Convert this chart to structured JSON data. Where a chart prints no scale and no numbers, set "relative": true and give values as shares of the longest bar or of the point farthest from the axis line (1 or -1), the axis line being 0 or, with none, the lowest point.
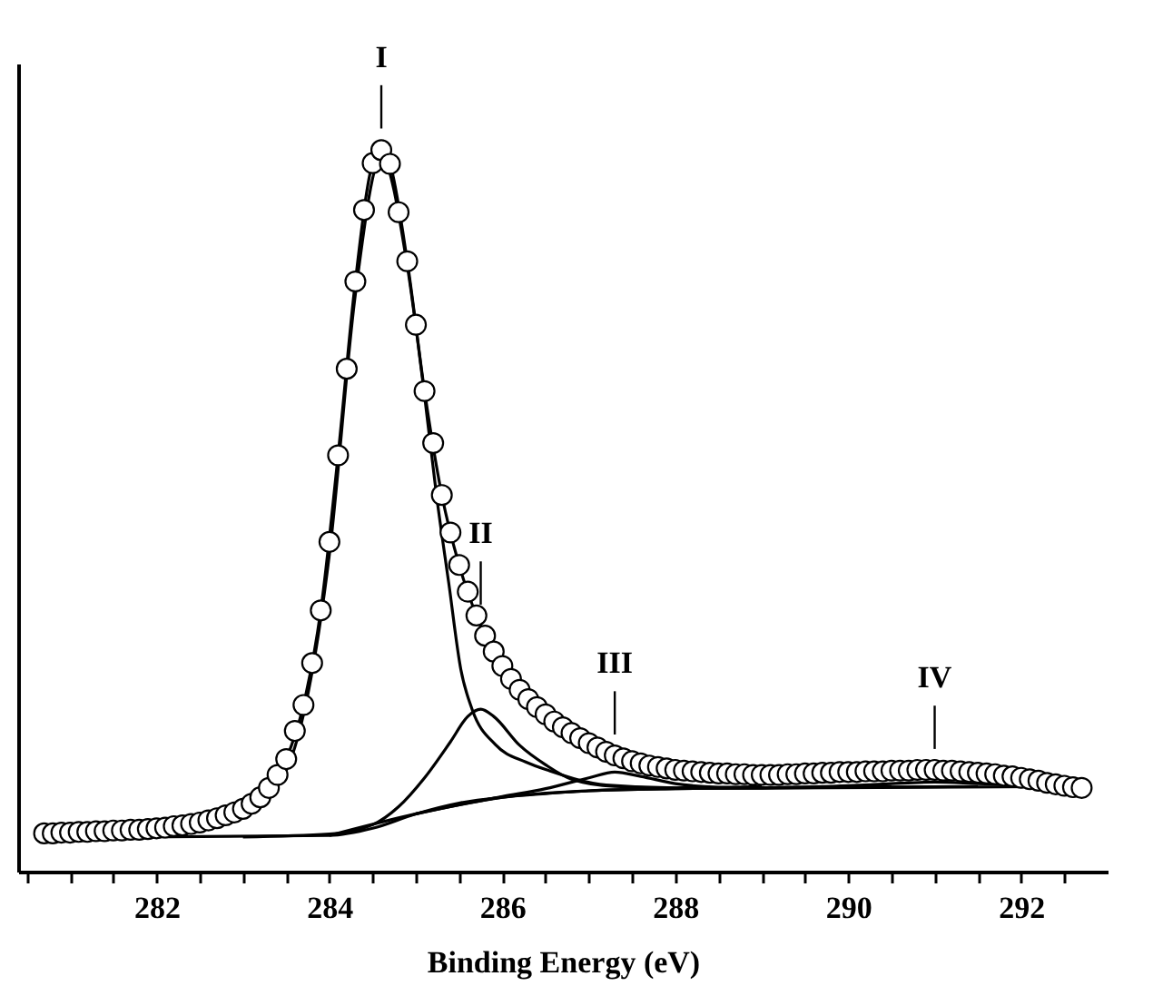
{
  "chart_data": {
    "type": "line",
    "relative": true,
    "xlabel": "Binding Energy (eV)",
    "xlim": [
      280.4,
      293.0
    ],
    "xticks": [
      {
        "value": 280.5,
        "label": null
      },
      {
        "value": 281,
        "label": null
      },
      {
        "value": 281.5,
        "label": null
      },
      282,
      {
        "value": 282.5,
        "label": null
      },
      {
        "value": 283,
        "label": null
      },
      {
        "value": 283.5,
        "label": null
      },
      284,
      {
        "value": 284.5,
        "label": null
      },
      {
        "value": 285,
        "label": null
      },
      {
        "value": 285.5,
        "label": null
      },
      286,
      {
        "value": 286.5,
        "label": null
      },
      {
        "value": 287,
        "label": null
      },
      {
        "value": 287.5,
        "label": null
      },
      288,
      {
        "value": 288.5,
        "label": null
      },
      {
        "value": 289,
        "label": null
      },
      {
        "value": 289.5,
        "label": null
      },
      290,
      {
        "value": 290.5,
        "label": null
      },
      {
        "value": 291,
        "label": null
      },
      {
        "value": 291.5,
        "label": null
      },
      292,
      {
        "value": 292.5,
        "label": null
      }
    ],
    "line_style": "solid",
    "annotations": [
      {
        "text": "I",
        "x": 284.6,
        "y": 1.0
      },
      {
        "text": "II",
        "x": 285.75,
        "y": 0.34
      },
      {
        "text": "III",
        "x": 287.3,
        "y": 0.16
      },
      {
        "text": "IV",
        "x": 291.0,
        "y": 0.14
      }
    ],
    "series": [
      {
        "color": "#000000",
        "x": [
          282.0,
          282.5,
          283.0,
          283.3,
          283.5,
          283.7,
          283.9,
          284.1,
          284.3,
          284.5,
          284.6,
          284.7,
          284.9,
          285.1,
          285.3,
          285.5,
          285.7,
          286.0,
          286.5,
          287.0,
          288.0,
          289.0,
          290.0,
          291.0,
          292.0,
          292.7
        ],
        "values": [
          0.06,
          0.068,
          0.087,
          0.116,
          0.156,
          0.231,
          0.362,
          0.577,
          0.818,
          0.982,
          1.0,
          0.981,
          0.846,
          0.666,
          0.522,
          0.425,
          0.355,
          0.285,
          0.218,
          0.178,
          0.141,
          0.134,
          0.138,
          0.141,
          0.13,
          0.116
        ]
      },
      {
        "color": "#000000",
        "x": [
          280.8,
          282.0,
          283.0,
          283.5,
          284.0,
          284.3,
          284.6,
          284.9,
          285.1,
          285.24,
          285.38,
          285.52,
          285.65,
          285.92,
          286.27,
          286.54,
          287.2,
          288.0,
          290.0,
          291.5
        ],
        "values": [
          0.047,
          0.05,
          0.075,
          0.14,
          0.44,
          0.8,
          0.99,
          0.84,
          0.66,
          0.52,
          0.4,
          0.28,
          0.225,
          0.176,
          0.152,
          0.14,
          0.12,
          0.116,
          0.117,
          0.118
        ]
      },
      {
        "color": "#000000",
        "x": [
          283.0,
          284.0,
          284.5,
          284.8,
          285.1,
          285.4,
          285.6,
          285.75,
          285.9,
          286.2,
          286.5,
          286.8,
          287.3,
          288.0,
          289.0
        ],
        "values": [
          0.048,
          0.052,
          0.065,
          0.09,
          0.13,
          0.18,
          0.215,
          0.225,
          0.215,
          0.175,
          0.148,
          0.128,
          0.118,
          0.116,
          0.118
        ]
      },
      {
        "color": "#000000",
        "x": [
          284.0,
          285.0,
          286.0,
          286.5,
          287.0,
          287.3,
          287.6,
          288.0,
          288.5,
          289.0,
          290.5
        ],
        "values": [
          0.05,
          0.08,
          0.104,
          0.115,
          0.13,
          0.138,
          0.132,
          0.122,
          0.117,
          0.116,
          0.118
        ]
      },
      {
        "color": "#000000",
        "x": [
          285.0,
          286.0,
          287.0,
          288.0,
          289.0,
          290.0,
          290.5,
          291.0,
          291.5,
          292.0,
          292.5
        ],
        "values": [
          0.08,
          0.103,
          0.112,
          0.115,
          0.116,
          0.119,
          0.122,
          0.124,
          0.122,
          0.12,
          0.118
        ]
      },
      {
        "color": "#000000",
        "x": [
          280.7,
          284.0,
          284.5,
          285.0,
          285.5,
          286.0,
          286.5,
          287.0,
          288.0,
          292.7
        ],
        "values": [
          0.047,
          0.05,
          0.06,
          0.08,
          0.095,
          0.103,
          0.108,
          0.112,
          0.115,
          0.118
        ]
      },
      {
        "type": "scatter",
        "marker": "circle",
        "color": "#000000",
        "x": [
          280.7,
          280.8,
          280.9,
          281.0,
          281.1,
          281.2,
          281.3,
          281.4,
          281.5,
          281.6,
          281.7,
          281.8,
          281.9,
          282.0,
          282.1,
          282.2,
          282.3,
          282.4,
          282.5,
          282.6,
          282.7,
          282.8,
          282.9,
          283.0,
          283.1,
          283.2,
          283.3,
          283.4,
          283.5,
          283.6,
          283.7,
          283.8,
          283.9,
          284.0,
          284.1,
          284.2,
          284.3,
          284.4,
          284.5,
          284.6,
          284.7,
          284.8,
          284.9,
          285.0,
          285.1,
          285.2,
          285.3,
          285.4,
          285.5,
          285.6,
          285.7,
          285.8,
          285.9,
          286.0,
          286.1,
          286.2,
          286.3,
          286.4,
          286.5,
          286.6,
          286.7,
          286.8,
          286.9,
          287.0,
          287.1,
          287.2,
          287.3,
          287.4,
          287.5,
          287.6,
          287.7,
          287.8,
          287.9,
          288.0,
          288.1,
          288.2,
          288.3,
          288.4,
          288.5,
          288.6,
          288.7,
          288.8,
          288.9,
          289.0,
          289.1,
          289.2,
          289.3,
          289.4,
          289.5,
          289.6,
          289.7,
          289.8,
          289.9,
          290.0,
          290.1,
          290.2,
          290.3,
          290.4,
          290.5,
          290.6,
          290.7,
          290.8,
          290.9,
          291.0,
          291.1,
          291.2,
          291.3,
          291.4,
          291.5,
          291.6,
          291.7,
          291.8,
          291.9,
          292.0,
          292.1,
          292.2,
          292.3,
          292.4,
          292.5,
          292.6,
          292.7
        ],
        "values": [
          0.053,
          0.053,
          0.054,
          0.054,
          0.055,
          0.055,
          0.056,
          0.056,
          0.057,
          0.057,
          0.058,
          0.058,
          0.059,
          0.06,
          0.061,
          0.063,
          0.064,
          0.066,
          0.068,
          0.071,
          0.074,
          0.078,
          0.082,
          0.087,
          0.094,
          0.103,
          0.116,
          0.134,
          0.156,
          0.195,
          0.231,
          0.289,
          0.362,
          0.457,
          0.577,
          0.697,
          0.818,
          0.917,
          0.982,
          1.0,
          0.981,
          0.914,
          0.846,
          0.758,
          0.666,
          0.594,
          0.522,
          0.47,
          0.425,
          0.388,
          0.355,
          0.327,
          0.305,
          0.285,
          0.267,
          0.252,
          0.239,
          0.228,
          0.218,
          0.208,
          0.2,
          0.192,
          0.185,
          0.178,
          0.172,
          0.166,
          0.161,
          0.157,
          0.153,
          0.15,
          0.147,
          0.145,
          0.143,
          0.141,
          0.14,
          0.139,
          0.138,
          0.137,
          0.136,
          0.136,
          0.135,
          0.135,
          0.134,
          0.134,
          0.134,
          0.134,
          0.135,
          0.135,
          0.136,
          0.136,
          0.137,
          0.137,
          0.138,
          0.138,
          0.138,
          0.139,
          0.139,
          0.139,
          0.14,
          0.14,
          0.14,
          0.141,
          0.141,
          0.141,
          0.14,
          0.14,
          0.139,
          0.138,
          0.137,
          0.136,
          0.135,
          0.133,
          0.132,
          0.13,
          0.128,
          0.126,
          0.123,
          0.121,
          0.119,
          0.117,
          0.116
        ]
      }
    ]
  }
}
